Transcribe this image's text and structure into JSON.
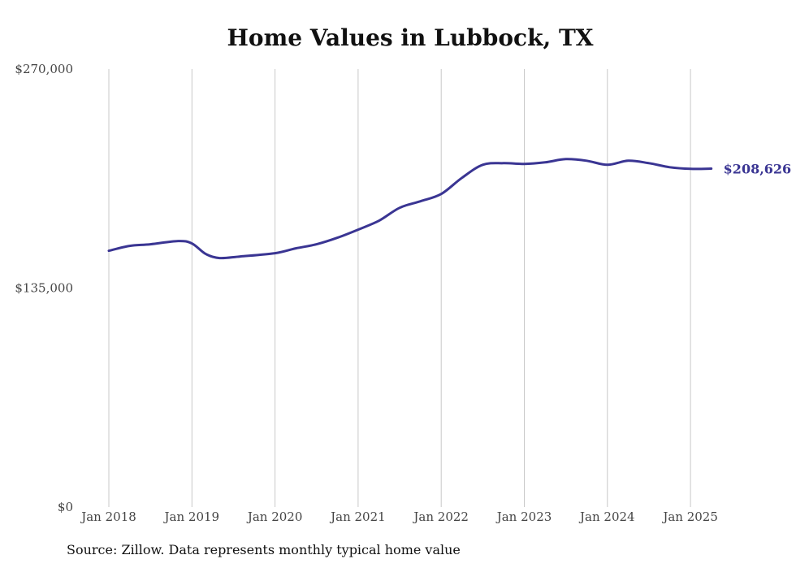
{
  "title": "Home Values in Lubbock, TX",
  "source_note": "Source: Zillow. Data represents monthly typical home value",
  "colors": {
    "line": "#3a3593",
    "grid": "#c8c8c8",
    "text": "#444444"
  },
  "chart_data": {
    "type": "line",
    "title": "Home Values in Lubbock, TX",
    "xlabel": "",
    "ylabel": "",
    "ylim": [
      0,
      270000
    ],
    "grid": "vertical",
    "legend": "none",
    "y_ticks": [
      {
        "value": 0,
        "label": "$0"
      },
      {
        "value": 135000,
        "label": "$135,000"
      },
      {
        "value": 270000,
        "label": "$270,000"
      }
    ],
    "x_ticks": [
      {
        "value": "2018-01",
        "label": "Jan 2018"
      },
      {
        "value": "2019-01",
        "label": "Jan 2019"
      },
      {
        "value": "2020-01",
        "label": "Jan 2020"
      },
      {
        "value": "2021-01",
        "label": "Jan 2021"
      },
      {
        "value": "2022-01",
        "label": "Jan 2022"
      },
      {
        "value": "2023-01",
        "label": "Jan 2023"
      },
      {
        "value": "2024-01",
        "label": "Jan 2024"
      },
      {
        "value": "2025-01",
        "label": "Jan 2025"
      }
    ],
    "end_label": "$208,626",
    "series": [
      {
        "points": [
          {
            "x": "2018-01",
            "y": 158000
          },
          {
            "x": "2018-04",
            "y": 161000
          },
          {
            "x": "2018-07",
            "y": 162000
          },
          {
            "x": "2018-11",
            "y": 164000
          },
          {
            "x": "2019-01",
            "y": 162500
          },
          {
            "x": "2019-03",
            "y": 156000
          },
          {
            "x": "2019-05",
            "y": 153500
          },
          {
            "x": "2019-08",
            "y": 154500
          },
          {
            "x": "2020-01",
            "y": 156500
          },
          {
            "x": "2020-04",
            "y": 159500
          },
          {
            "x": "2020-07",
            "y": 162000
          },
          {
            "x": "2020-10",
            "y": 166000
          },
          {
            "x": "2021-01",
            "y": 171000
          },
          {
            "x": "2021-04",
            "y": 176500
          },
          {
            "x": "2021-07",
            "y": 184500
          },
          {
            "x": "2021-10",
            "y": 188500
          },
          {
            "x": "2022-01",
            "y": 193000
          },
          {
            "x": "2022-04",
            "y": 203000
          },
          {
            "x": "2022-07",
            "y": 211000
          },
          {
            "x": "2022-10",
            "y": 212000
          },
          {
            "x": "2023-01",
            "y": 211500
          },
          {
            "x": "2023-04",
            "y": 212500
          },
          {
            "x": "2023-07",
            "y": 214500
          },
          {
            "x": "2023-10",
            "y": 213500
          },
          {
            "x": "2024-01",
            "y": 211000
          },
          {
            "x": "2024-04",
            "y": 213500
          },
          {
            "x": "2024-07",
            "y": 212000
          },
          {
            "x": "2024-10",
            "y": 209500
          },
          {
            "x": "2025-01",
            "y": 208500
          },
          {
            "x": "2025-04",
            "y": 208626
          }
        ]
      }
    ]
  }
}
